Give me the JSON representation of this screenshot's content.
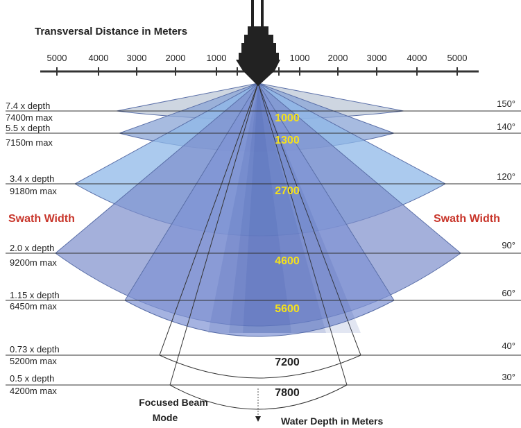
{
  "title": "Transversal Distance in Meters",
  "scale": {
    "left": [
      5000,
      4000,
      3000,
      2000,
      1000
    ],
    "right": [
      1000,
      2000,
      3000,
      4000,
      5000
    ]
  },
  "levels": [
    {
      "ratio": "7.4 x depth",
      "max": "7400m max",
      "angle": "150°",
      "depth": "1000"
    },
    {
      "ratio": "5.5 x depth",
      "max": "7150m max",
      "angle": "140°",
      "depth": "1300"
    },
    {
      "ratio": "3.4 x depth",
      "max": "9180m max",
      "angle": "120°",
      "depth": "2700"
    },
    {
      "ratio": "2.0 x depth",
      "max": "9200m max",
      "angle": "90°",
      "depth": "4600"
    },
    {
      "ratio": "1.15 x depth",
      "max": "6450m max",
      "angle": "60°",
      "depth": "5600"
    },
    {
      "ratio": "0.73 x depth",
      "max": "5200m max",
      "angle": "40°",
      "depth": "7200"
    },
    {
      "ratio": "0.5 x depth",
      "max": "4200m max",
      "angle": "30°",
      "depth": "7800"
    }
  ],
  "swath_left": "Swath Width",
  "swath_right": "Swath Width",
  "focused_beam": [
    "Focused Beam",
    "Mode"
  ],
  "depth_axis": "Water Depth in Meters"
}
